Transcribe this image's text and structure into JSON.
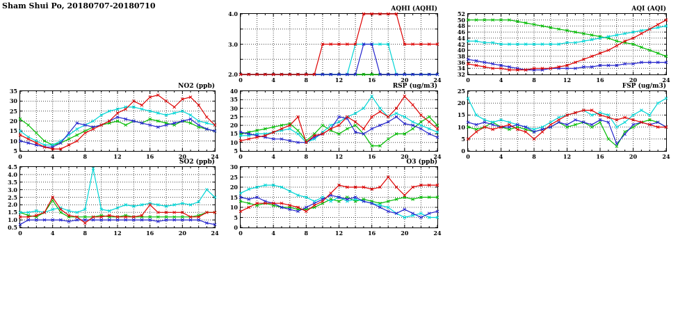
{
  "header": {
    "title": "Sham Shui Po, 20180707-20180710"
  },
  "colors": {
    "red": "#dd0000",
    "green": "#00bb00",
    "blue": "#2222cc",
    "cyan": "#00d5d5"
  },
  "chart_data": [
    {
      "id": "aqhi",
      "type": "line",
      "title": "AQHI (AQHI)",
      "xlim": [
        0,
        24
      ],
      "ylim": [
        2,
        4
      ],
      "xgrid": 2,
      "xtick_vals": [
        0,
        4,
        8,
        12,
        16,
        20,
        24
      ],
      "xtick_labels": [
        "0",
        "4",
        "8",
        "12",
        "16",
        "20",
        "24"
      ],
      "ytick_vals": [
        2,
        2.5,
        3,
        3.5,
        4
      ],
      "ytick_labels": [
        "2.0",
        "",
        "3.0",
        "",
        "4.0"
      ],
      "series": [
        {
          "name": "green",
          "color": "#00bb00",
          "values": [
            2,
            2,
            2,
            2,
            2,
            2,
            2,
            2,
            2,
            2,
            2,
            2,
            2,
            2,
            2,
            2,
            2,
            2,
            2,
            2,
            2,
            2,
            2,
            2,
            2
          ]
        },
        {
          "name": "cyan",
          "color": "#00d5d5",
          "values": [
            2,
            2,
            2,
            2,
            2,
            2,
            2,
            2,
            2,
            2,
            2,
            2,
            2,
            2,
            3,
            3,
            3,
            3,
            3,
            2,
            2,
            2,
            2,
            2,
            2
          ]
        },
        {
          "name": "blue",
          "color": "#2222cc",
          "values": [
            2,
            2,
            2,
            2,
            2,
            2,
            2,
            2,
            2,
            2,
            2,
            2,
            2,
            2,
            2,
            3,
            3,
            2,
            2,
            2,
            2,
            2,
            2,
            2,
            2
          ]
        },
        {
          "name": "red",
          "color": "#dd0000",
          "values": [
            2,
            2,
            2,
            2,
            2,
            2,
            2,
            2,
            2,
            2,
            3,
            3,
            3,
            3,
            3,
            4,
            4,
            4,
            4,
            4,
            3,
            3,
            3,
            3,
            3
          ]
        }
      ]
    },
    {
      "id": "aqi",
      "type": "line",
      "title": "AQI (AQI)",
      "xlim": [
        0,
        24
      ],
      "ylim": [
        32,
        52
      ],
      "xgrid": 2,
      "xtick_vals": [
        0,
        4,
        8,
        12,
        16,
        20,
        24
      ],
      "xtick_labels": [
        "0",
        "4",
        "8",
        "12",
        "16",
        "20",
        "24"
      ],
      "ytick_vals": [
        32,
        34,
        36,
        38,
        40,
        42,
        44,
        46,
        48,
        50,
        52
      ],
      "ytick_labels": [
        "32",
        "34",
        "36",
        "38",
        "40",
        "42",
        "44",
        "46",
        "48",
        "50",
        "52"
      ],
      "series": [
        {
          "name": "green",
          "color": "#00bb00",
          "values": [
            50,
            50,
            50,
            50,
            50,
            50,
            49.5,
            49,
            48.5,
            48,
            47.5,
            47,
            46.5,
            46,
            45.5,
            45,
            44.5,
            44,
            43,
            42.5,
            42,
            41,
            40,
            39,
            38
          ]
        },
        {
          "name": "cyan",
          "color": "#00d5d5",
          "values": [
            43,
            43,
            42.5,
            42.5,
            42,
            42,
            42,
            42,
            42,
            42,
            42,
            42,
            42.5,
            42.5,
            43,
            43.5,
            44,
            44.5,
            45,
            45.5,
            46,
            46.5,
            47,
            47.5,
            48
          ]
        },
        {
          "name": "blue",
          "color": "#2222cc",
          "values": [
            37,
            36.5,
            36,
            35.5,
            35,
            34.5,
            34,
            33.5,
            33.5,
            33.5,
            34,
            34,
            34,
            34,
            34.5,
            34.5,
            35,
            35,
            35,
            35.5,
            35.5,
            36,
            36,
            36,
            36
          ]
        },
        {
          "name": "red",
          "color": "#dd0000",
          "values": [
            35.5,
            35,
            34.5,
            34,
            34,
            33.5,
            33.5,
            33.5,
            34,
            34,
            34,
            34.5,
            35,
            36,
            37,
            38,
            39,
            40,
            41.5,
            43,
            44,
            45.5,
            47,
            48.5,
            50
          ]
        }
      ]
    },
    {
      "id": "no2",
      "type": "line",
      "title": "NO2 (ppb)",
      "xlim": [
        0,
        24
      ],
      "ylim": [
        5,
        35
      ],
      "xgrid": 2,
      "xtick_vals": [
        0,
        4,
        8,
        12,
        16,
        20,
        24
      ],
      "xtick_labels": [
        "0",
        "4",
        "8",
        "12",
        "16",
        "20",
        "24"
      ],
      "ytick_vals": [
        5,
        10,
        15,
        20,
        25,
        30,
        35
      ],
      "ytick_labels": [
        "5",
        "10",
        "15",
        "20",
        "25",
        "30",
        "35"
      ],
      "series": [
        {
          "name": "green",
          "color": "#00bb00",
          "values": [
            21,
            18,
            14,
            10,
            8,
            9,
            11,
            13,
            15,
            17,
            18,
            19,
            20,
            18,
            20,
            19,
            21,
            20,
            19,
            18,
            20,
            19,
            17,
            16,
            15
          ]
        },
        {
          "name": "cyan",
          "color": "#00d5d5",
          "values": [
            15,
            12,
            10,
            8,
            8,
            10,
            13,
            16,
            18,
            20,
            23,
            25,
            26,
            27,
            27,
            26,
            25,
            24,
            23,
            24,
            25,
            23,
            20,
            19,
            18
          ]
        },
        {
          "name": "blue",
          "color": "#2222cc",
          "values": [
            10,
            9,
            8,
            7,
            7,
            9,
            14,
            19,
            18,
            17,
            18,
            20,
            22,
            21,
            20,
            19,
            18,
            17,
            18,
            19,
            20,
            21,
            18,
            16,
            15
          ]
        },
        {
          "name": "red",
          "color": "#dd0000",
          "values": [
            13,
            11,
            9,
            7,
            6,
            6,
            8,
            10,
            14,
            16,
            18,
            20,
            24,
            26,
            30,
            28,
            32,
            33,
            30,
            27,
            31,
            32,
            28,
            22,
            18
          ]
        }
      ]
    },
    {
      "id": "rsp",
      "type": "line",
      "title": "RSP (ug/m3)",
      "xlim": [
        0,
        24
      ],
      "ylim": [
        5,
        40
      ],
      "xgrid": 2,
      "xtick_vals": [
        0,
        4,
        8,
        12,
        16,
        20,
        24
      ],
      "xtick_labels": [
        "0",
        "4",
        "8",
        "12",
        "16",
        "20",
        "24"
      ],
      "ytick_vals": [
        5,
        10,
        15,
        20,
        25,
        30,
        35,
        40
      ],
      "ytick_labels": [
        "5",
        "10",
        "15",
        "20",
        "25",
        "30",
        "35",
        "40"
      ],
      "series": [
        {
          "name": "green",
          "color": "#00bb00",
          "values": [
            15,
            16,
            17,
            18,
            19,
            20,
            21,
            17,
            11,
            15,
            20,
            17,
            15,
            18,
            20,
            15,
            8,
            8,
            12,
            15,
            15,
            18,
            22,
            25,
            20
          ]
        },
        {
          "name": "cyan",
          "color": "#00d5d5",
          "values": [
            14,
            14,
            15,
            15,
            16,
            17,
            18,
            15,
            10,
            12,
            16,
            20,
            22,
            25,
            27,
            30,
            37,
            30,
            25,
            27,
            25,
            22,
            20,
            18,
            16
          ]
        },
        {
          "name": "blue",
          "color": "#2222cc",
          "values": [
            16,
            15,
            14,
            13,
            12,
            12,
            11,
            10,
            10,
            13,
            15,
            18,
            25,
            24,
            16,
            15,
            18,
            20,
            22,
            25,
            21,
            20,
            18,
            15,
            13
          ]
        },
        {
          "name": "red",
          "color": "#dd0000",
          "values": [
            11,
            12,
            13,
            14,
            16,
            18,
            20,
            25,
            10,
            14,
            15,
            18,
            20,
            25,
            22,
            18,
            25,
            28,
            25,
            30,
            37,
            32,
            26,
            22,
            18
          ]
        }
      ]
    },
    {
      "id": "fsp",
      "type": "line",
      "title": "FSP (ug/m3)",
      "xlim": [
        0,
        24
      ],
      "ylim": [
        0,
        25
      ],
      "xgrid": 2,
      "xtick_vals": [
        0,
        4,
        8,
        12,
        16,
        20,
        24
      ],
      "xtick_labels": [
        "0",
        "4",
        "8",
        "12",
        "16",
        "20",
        "24"
      ],
      "ytick_vals": [
        0,
        5,
        10,
        15,
        20,
        25
      ],
      "ytick_labels": [
        "0",
        "5",
        "10",
        "15",
        "20",
        "25"
      ],
      "series": [
        {
          "name": "green",
          "color": "#00bb00",
          "values": [
            10,
            9,
            10,
            12,
            10,
            9,
            10,
            9,
            8,
            9,
            10,
            12,
            10,
            11,
            12,
            10,
            12,
            5,
            2,
            8,
            10,
            12,
            13,
            12,
            10
          ]
        },
        {
          "name": "cyan",
          "color": "#00d5d5",
          "values": [
            22,
            15,
            13,
            12,
            13,
            12,
            11,
            10,
            9,
            10,
            12,
            14,
            15,
            16,
            17,
            15,
            16,
            15,
            10,
            12,
            15,
            17,
            15,
            20,
            22
          ]
        },
        {
          "name": "blue",
          "color": "#2222cc",
          "values": [
            12,
            11,
            12,
            11,
            10,
            10,
            11,
            10,
            8,
            9,
            10,
            12,
            11,
            13,
            12,
            11,
            13,
            12,
            3,
            7,
            11,
            12,
            11,
            12,
            10
          ]
        },
        {
          "name": "red",
          "color": "#dd0000",
          "values": [
            5,
            8,
            10,
            9,
            10,
            11,
            9,
            8,
            5,
            8,
            11,
            13,
            15,
            16,
            17,
            17,
            15,
            14,
            13,
            14,
            13,
            12,
            11,
            10,
            10
          ]
        }
      ]
    },
    {
      "id": "so2",
      "type": "line",
      "title": "SO2 (ppb)",
      "xlim": [
        0,
        24
      ],
      "ylim": [
        0.5,
        4.5
      ],
      "xgrid": 2,
      "xtick_vals": [
        0,
        4,
        8,
        12,
        16,
        20,
        24
      ],
      "xtick_labels": [
        "0",
        "4",
        "8",
        "12",
        "16",
        "20",
        "24"
      ],
      "ytick_vals": [
        0.5,
        1,
        1.5,
        2,
        2.5,
        3,
        3.5,
        4,
        4.5
      ],
      "ytick_labels": [
        "0.5",
        "1.0",
        "1.5",
        "2.0",
        "2.5",
        "3.0",
        "3.5",
        "4.0",
        "4.5"
      ],
      "series": [
        {
          "name": "green",
          "color": "#00bb00",
          "values": [
            1.5,
            1.3,
            1.2,
            1.5,
            2.3,
            1.5,
            1.2,
            1.2,
            1.2,
            1.2,
            1.3,
            1.2,
            1.2,
            1.3,
            1.2,
            1.2,
            1.2,
            1.2,
            1.2,
            1.2,
            1.2,
            1.2,
            1.3,
            1.5,
            1.5
          ]
        },
        {
          "name": "cyan",
          "color": "#00d5d5",
          "values": [
            1.5,
            1.5,
            1.6,
            1.5,
            1.7,
            1.8,
            1.6,
            1.5,
            1.7,
            4.4,
            1.7,
            1.6,
            1.8,
            2.0,
            1.9,
            2.0,
            2.1,
            2.0,
            1.9,
            2.0,
            2.1,
            2.0,
            2.2,
            3.0,
            2.5
          ]
        },
        {
          "name": "blue",
          "color": "#2222cc",
          "values": [
            0.7,
            1.0,
            1.0,
            1.0,
            1.0,
            1.0,
            0.9,
            1.0,
            1.0,
            1.0,
            1.0,
            1.0,
            1.0,
            1.0,
            1.0,
            1.0,
            1.0,
            0.9,
            1.0,
            1.0,
            1.0,
            1.0,
            1.0,
            0.8,
            0.7
          ]
        },
        {
          "name": "red",
          "color": "#dd0000",
          "values": [
            1.2,
            1.2,
            1.3,
            1.5,
            2.5,
            1.7,
            1.3,
            1.2,
            0.8,
            1.2,
            1.2,
            1.3,
            1.2,
            1.2,
            1.2,
            1.3,
            2.0,
            1.5,
            1.5,
            1.5,
            1.5,
            1.2,
            1.2,
            1.5,
            1.5
          ]
        }
      ]
    },
    {
      "id": "o3",
      "type": "line",
      "title": "O3 (ppb)",
      "xlim": [
        0,
        24
      ],
      "ylim": [
        0,
        30
      ],
      "xgrid": 2,
      "xtick_vals": [
        0,
        4,
        8,
        12,
        16,
        20,
        24
      ],
      "xtick_labels": [
        "0",
        "4",
        "8",
        "12",
        "16",
        "20",
        "24"
      ],
      "ytick_vals": [
        0,
        5,
        10,
        15,
        20,
        25,
        30
      ],
      "ytick_labels": [
        "0",
        "5",
        "10",
        "15",
        "20",
        "25",
        "30"
      ],
      "series": [
        {
          "name": "green",
          "color": "#00bb00",
          "values": [
            13,
            12,
            11,
            12,
            11,
            10,
            10,
            9,
            9,
            10,
            12,
            14,
            13,
            15,
            13,
            14,
            13,
            12,
            13,
            14,
            15,
            14,
            15,
            15,
            15
          ]
        },
        {
          "name": "cyan",
          "color": "#00d5d5",
          "values": [
            17,
            19,
            20,
            21,
            21,
            20,
            18,
            16,
            15,
            13,
            15,
            13,
            15,
            13,
            14,
            13,
            12,
            11,
            10,
            7,
            5,
            6,
            7,
            5,
            5
          ]
        },
        {
          "name": "blue",
          "color": "#2222cc",
          "values": [
            15,
            14,
            15,
            13,
            12,
            10,
            9,
            8,
            10,
            12,
            14,
            16,
            15,
            14,
            15,
            13,
            12,
            10,
            8,
            7,
            9,
            7,
            5,
            7,
            8
          ]
        },
        {
          "name": "red",
          "color": "#dd0000",
          "values": [
            8,
            10,
            12,
            12,
            12,
            12,
            11,
            10,
            8,
            11,
            13,
            17,
            21,
            20,
            20,
            20,
            19,
            20,
            25,
            20,
            16,
            20,
            21,
            21,
            21
          ]
        }
      ]
    }
  ]
}
